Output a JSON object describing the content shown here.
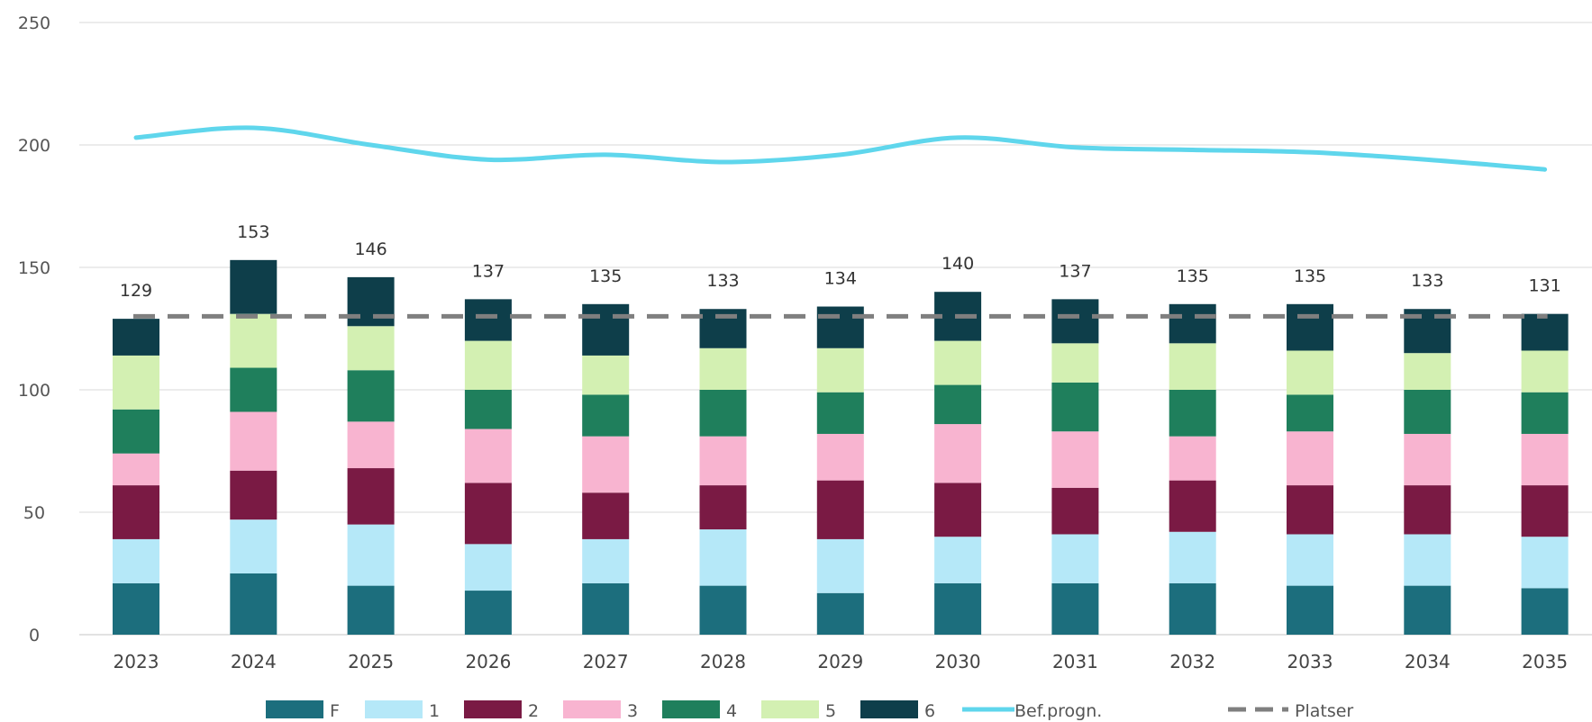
{
  "chart_data": {
    "type": "bar",
    "stacked": true,
    "categories": [
      "2023",
      "2024",
      "2025",
      "2026",
      "2027",
      "2028",
      "2029",
      "2030",
      "2031",
      "2032",
      "2033",
      "2034",
      "2035"
    ],
    "series": [
      {
        "name": "F",
        "color": "#1c6e7d",
        "values": [
          21,
          25,
          20,
          18,
          21,
          20,
          17,
          21,
          21,
          21,
          20,
          20,
          19
        ]
      },
      {
        "name": "1",
        "color": "#b5e8f8",
        "values": [
          18,
          22,
          25,
          19,
          18,
          23,
          22,
          19,
          20,
          21,
          21,
          21,
          21
        ]
      },
      {
        "name": "2",
        "color": "#7a1a44",
        "values": [
          22,
          20,
          23,
          25,
          19,
          18,
          24,
          22,
          19,
          21,
          20,
          20,
          21
        ]
      },
      {
        "name": "3",
        "color": "#f8b4d0",
        "values": [
          13,
          24,
          19,
          22,
          23,
          20,
          19,
          24,
          23,
          18,
          22,
          21,
          21
        ]
      },
      {
        "name": "4",
        "color": "#1f7f5c",
        "values": [
          18,
          18,
          21,
          16,
          17,
          19,
          17,
          16,
          20,
          19,
          15,
          18,
          17
        ]
      },
      {
        "name": "5",
        "color": "#d3f0b2",
        "values": [
          22,
          22,
          18,
          20,
          16,
          17,
          18,
          18,
          16,
          19,
          18,
          15,
          17
        ]
      },
      {
        "name": "6",
        "color": "#0e3e4a",
        "values": [
          15,
          22,
          20,
          17,
          21,
          16,
          17,
          20,
          18,
          16,
          19,
          18,
          15
        ]
      }
    ],
    "totals": [
      129,
      153,
      146,
      137,
      135,
      133,
      134,
      140,
      137,
      135,
      135,
      133,
      131
    ],
    "lines": [
      {
        "name": "Bef.progn.",
        "color": "#5fd6ec",
        "style": "solid",
        "values": [
          203,
          207,
          200,
          194,
          196,
          193,
          196,
          203,
          199,
          198,
          197,
          194,
          190
        ]
      },
      {
        "name": "Platser",
        "color": "#7f7f7f",
        "style": "dashed",
        "values": [
          130,
          130,
          130,
          130,
          130,
          130,
          130,
          130,
          130,
          130,
          130,
          130,
          130
        ]
      }
    ],
    "ylim": [
      0,
      250
    ],
    "yticks": [
      0,
      50,
      100,
      150,
      200,
      250
    ],
    "ytick_labels": [
      "0",
      "50",
      "100",
      "150",
      "200",
      "250"
    ],
    "grid": true,
    "legend_position": "bottom",
    "gridline_color": "#d9d9d9"
  }
}
